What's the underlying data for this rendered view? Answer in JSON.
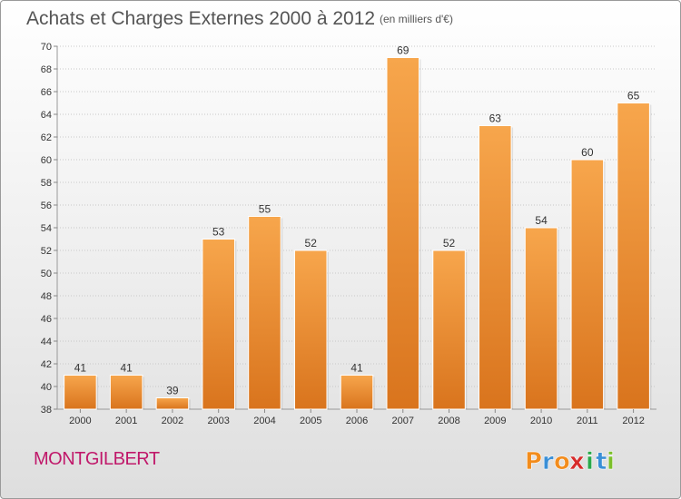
{
  "header": {
    "title": "Achats et Charges Externes 2000 à 2012",
    "subtitle": "(en milliers d'€)"
  },
  "footer": {
    "commune": "MONTGILBERT",
    "logo_text": "Proxiti"
  },
  "colors": {
    "bar_top": "#f7a64c",
    "bar_bottom": "#d9741d",
    "commune_text": "#c0186a",
    "logo_letters": [
      "#f28c1c",
      "#3a8fd6",
      "#f28c1c",
      "#d62b2b",
      "#2aa84a",
      "#3a8fd6",
      "#7cbf2a"
    ]
  },
  "chart_data": {
    "type": "bar",
    "title": "Achats et Charges Externes 2000 à 2012",
    "subtitle": "(en milliers d'€)",
    "xlabel": "",
    "ylabel": "",
    "categories": [
      "2000",
      "2001",
      "2002",
      "2003",
      "2004",
      "2005",
      "2006",
      "2007",
      "2008",
      "2009",
      "2010",
      "2011",
      "2012"
    ],
    "values": [
      41,
      41,
      39,
      53,
      55,
      52,
      41,
      69,
      52,
      63,
      54,
      60,
      65
    ],
    "ylim": [
      38,
      70
    ],
    "yticks": [
      38,
      40,
      42,
      44,
      46,
      48,
      50,
      52,
      54,
      56,
      58,
      60,
      62,
      64,
      66,
      68,
      70
    ],
    "grid": "horizontal dotted",
    "legend": "none"
  }
}
